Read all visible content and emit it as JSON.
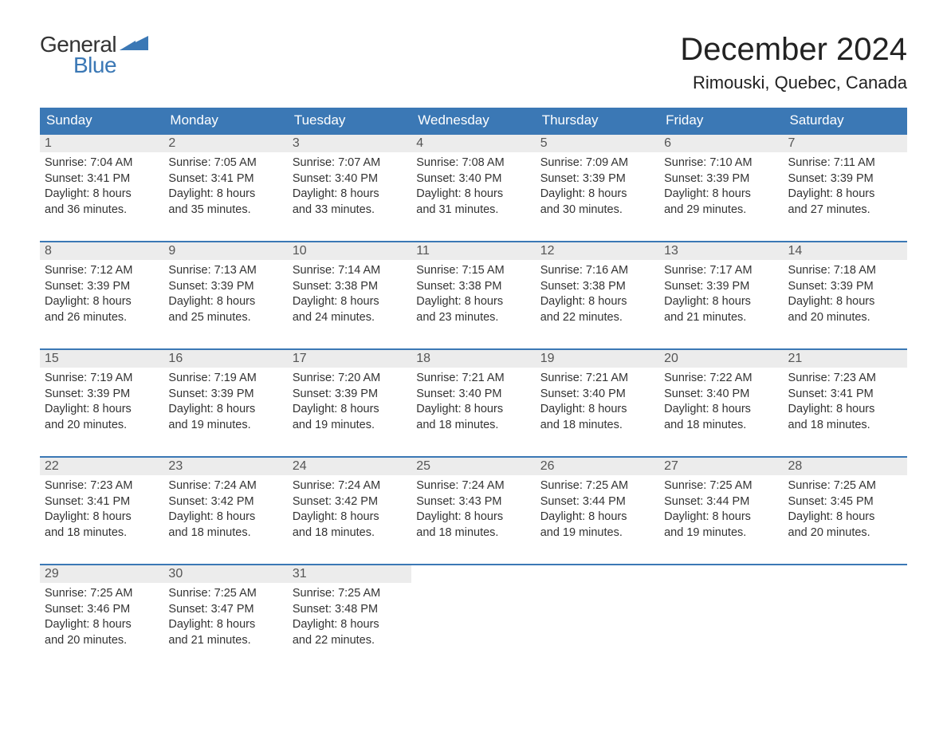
{
  "logo": {
    "text1": "General",
    "text2": "Blue"
  },
  "title": "December 2024",
  "location": "Rimouski, Quebec, Canada",
  "colors": {
    "header_bg": "#3b78b5",
    "header_text": "#ffffff",
    "daylabel_bg": "#ececec",
    "daylabel_text": "#555555",
    "body_text": "#333333",
    "week_border": "#3b78b5",
    "page_bg": "#ffffff"
  },
  "typography": {
    "title_fontsize": 40,
    "location_fontsize": 22,
    "weekday_fontsize": 17,
    "daylabel_fontsize": 16,
    "content_fontsize": 14.5,
    "font_family": "Arial"
  },
  "weekdays": [
    "Sunday",
    "Monday",
    "Tuesday",
    "Wednesday",
    "Thursday",
    "Friday",
    "Saturday"
  ],
  "weeks": [
    [
      {
        "n": "1",
        "sr": "Sunrise: 7:04 AM",
        "ss": "Sunset: 3:41 PM",
        "dl1": "Daylight: 8 hours",
        "dl2": "and 36 minutes."
      },
      {
        "n": "2",
        "sr": "Sunrise: 7:05 AM",
        "ss": "Sunset: 3:41 PM",
        "dl1": "Daylight: 8 hours",
        "dl2": "and 35 minutes."
      },
      {
        "n": "3",
        "sr": "Sunrise: 7:07 AM",
        "ss": "Sunset: 3:40 PM",
        "dl1": "Daylight: 8 hours",
        "dl2": "and 33 minutes."
      },
      {
        "n": "4",
        "sr": "Sunrise: 7:08 AM",
        "ss": "Sunset: 3:40 PM",
        "dl1": "Daylight: 8 hours",
        "dl2": "and 31 minutes."
      },
      {
        "n": "5",
        "sr": "Sunrise: 7:09 AM",
        "ss": "Sunset: 3:39 PM",
        "dl1": "Daylight: 8 hours",
        "dl2": "and 30 minutes."
      },
      {
        "n": "6",
        "sr": "Sunrise: 7:10 AM",
        "ss": "Sunset: 3:39 PM",
        "dl1": "Daylight: 8 hours",
        "dl2": "and 29 minutes."
      },
      {
        "n": "7",
        "sr": "Sunrise: 7:11 AM",
        "ss": "Sunset: 3:39 PM",
        "dl1": "Daylight: 8 hours",
        "dl2": "and 27 minutes."
      }
    ],
    [
      {
        "n": "8",
        "sr": "Sunrise: 7:12 AM",
        "ss": "Sunset: 3:39 PM",
        "dl1": "Daylight: 8 hours",
        "dl2": "and 26 minutes."
      },
      {
        "n": "9",
        "sr": "Sunrise: 7:13 AM",
        "ss": "Sunset: 3:39 PM",
        "dl1": "Daylight: 8 hours",
        "dl2": "and 25 minutes."
      },
      {
        "n": "10",
        "sr": "Sunrise: 7:14 AM",
        "ss": "Sunset: 3:38 PM",
        "dl1": "Daylight: 8 hours",
        "dl2": "and 24 minutes."
      },
      {
        "n": "11",
        "sr": "Sunrise: 7:15 AM",
        "ss": "Sunset: 3:38 PM",
        "dl1": "Daylight: 8 hours",
        "dl2": "and 23 minutes."
      },
      {
        "n": "12",
        "sr": "Sunrise: 7:16 AM",
        "ss": "Sunset: 3:38 PM",
        "dl1": "Daylight: 8 hours",
        "dl2": "and 22 minutes."
      },
      {
        "n": "13",
        "sr": "Sunrise: 7:17 AM",
        "ss": "Sunset: 3:39 PM",
        "dl1": "Daylight: 8 hours",
        "dl2": "and 21 minutes."
      },
      {
        "n": "14",
        "sr": "Sunrise: 7:18 AM",
        "ss": "Sunset: 3:39 PM",
        "dl1": "Daylight: 8 hours",
        "dl2": "and 20 minutes."
      }
    ],
    [
      {
        "n": "15",
        "sr": "Sunrise: 7:19 AM",
        "ss": "Sunset: 3:39 PM",
        "dl1": "Daylight: 8 hours",
        "dl2": "and 20 minutes."
      },
      {
        "n": "16",
        "sr": "Sunrise: 7:19 AM",
        "ss": "Sunset: 3:39 PM",
        "dl1": "Daylight: 8 hours",
        "dl2": "and 19 minutes."
      },
      {
        "n": "17",
        "sr": "Sunrise: 7:20 AM",
        "ss": "Sunset: 3:39 PM",
        "dl1": "Daylight: 8 hours",
        "dl2": "and 19 minutes."
      },
      {
        "n": "18",
        "sr": "Sunrise: 7:21 AM",
        "ss": "Sunset: 3:40 PM",
        "dl1": "Daylight: 8 hours",
        "dl2": "and 18 minutes."
      },
      {
        "n": "19",
        "sr": "Sunrise: 7:21 AM",
        "ss": "Sunset: 3:40 PM",
        "dl1": "Daylight: 8 hours",
        "dl2": "and 18 minutes."
      },
      {
        "n": "20",
        "sr": "Sunrise: 7:22 AM",
        "ss": "Sunset: 3:40 PM",
        "dl1": "Daylight: 8 hours",
        "dl2": "and 18 minutes."
      },
      {
        "n": "21",
        "sr": "Sunrise: 7:23 AM",
        "ss": "Sunset: 3:41 PM",
        "dl1": "Daylight: 8 hours",
        "dl2": "and 18 minutes."
      }
    ],
    [
      {
        "n": "22",
        "sr": "Sunrise: 7:23 AM",
        "ss": "Sunset: 3:41 PM",
        "dl1": "Daylight: 8 hours",
        "dl2": "and 18 minutes."
      },
      {
        "n": "23",
        "sr": "Sunrise: 7:24 AM",
        "ss": "Sunset: 3:42 PM",
        "dl1": "Daylight: 8 hours",
        "dl2": "and 18 minutes."
      },
      {
        "n": "24",
        "sr": "Sunrise: 7:24 AM",
        "ss": "Sunset: 3:42 PM",
        "dl1": "Daylight: 8 hours",
        "dl2": "and 18 minutes."
      },
      {
        "n": "25",
        "sr": "Sunrise: 7:24 AM",
        "ss": "Sunset: 3:43 PM",
        "dl1": "Daylight: 8 hours",
        "dl2": "and 18 minutes."
      },
      {
        "n": "26",
        "sr": "Sunrise: 7:25 AM",
        "ss": "Sunset: 3:44 PM",
        "dl1": "Daylight: 8 hours",
        "dl2": "and 19 minutes."
      },
      {
        "n": "27",
        "sr": "Sunrise: 7:25 AM",
        "ss": "Sunset: 3:44 PM",
        "dl1": "Daylight: 8 hours",
        "dl2": "and 19 minutes."
      },
      {
        "n": "28",
        "sr": "Sunrise: 7:25 AM",
        "ss": "Sunset: 3:45 PM",
        "dl1": "Daylight: 8 hours",
        "dl2": "and 20 minutes."
      }
    ],
    [
      {
        "n": "29",
        "sr": "Sunrise: 7:25 AM",
        "ss": "Sunset: 3:46 PM",
        "dl1": "Daylight: 8 hours",
        "dl2": "and 20 minutes."
      },
      {
        "n": "30",
        "sr": "Sunrise: 7:25 AM",
        "ss": "Sunset: 3:47 PM",
        "dl1": "Daylight: 8 hours",
        "dl2": "and 21 minutes."
      },
      {
        "n": "31",
        "sr": "Sunrise: 7:25 AM",
        "ss": "Sunset: 3:48 PM",
        "dl1": "Daylight: 8 hours",
        "dl2": "and 22 minutes."
      },
      null,
      null,
      null,
      null
    ]
  ]
}
